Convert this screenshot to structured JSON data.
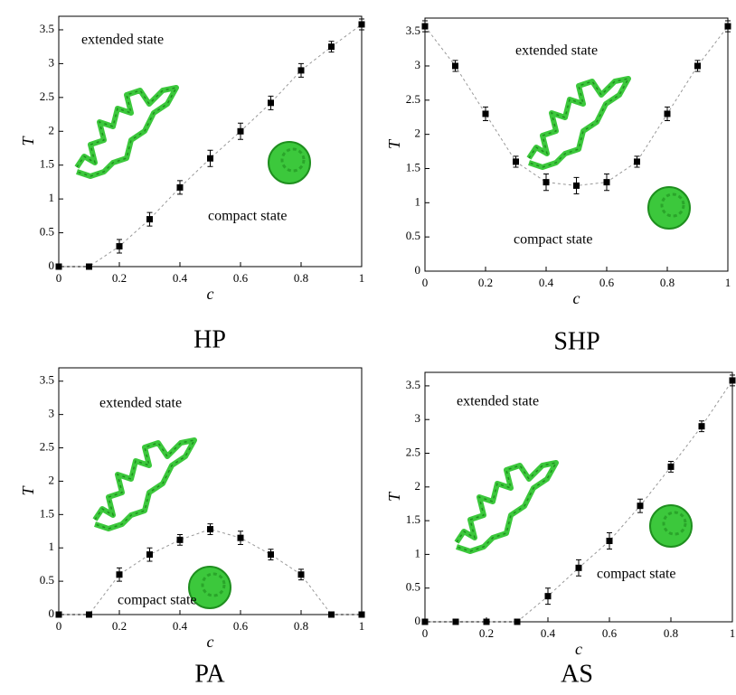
{
  "chart_data": [
    {
      "type": "scatter",
      "label": "HP",
      "xlabel": "c",
      "ylabel": "T",
      "annotations": [
        "extended state",
        "compact state"
      ],
      "color": "#000000",
      "x": [
        0,
        0.1,
        0.2,
        0.3,
        0.4,
        0.5,
        0.6,
        0.7,
        0.8,
        0.9,
        1
      ],
      "values": [
        0,
        0,
        0.3,
        0.7,
        1.17,
        1.6,
        2.0,
        2.42,
        2.9,
        3.25,
        3.58
      ],
      "errors": [
        0,
        0,
        0.1,
        0.1,
        0.1,
        0.12,
        0.12,
        0.1,
        0.1,
        0.08,
        0.08
      ],
      "xlim": [
        0,
        1
      ],
      "ylim": [
        0,
        3.7
      ],
      "xticks": [
        0,
        0.2,
        0.4,
        0.6,
        0.8,
        1
      ],
      "yticks": [
        0,
        0.5,
        1,
        1.5,
        2,
        2.5,
        3,
        3.5
      ]
    },
    {
      "type": "scatter",
      "label": "SHP",
      "xlabel": "c",
      "ylabel": "T",
      "annotations": [
        "extended state",
        "compact state"
      ],
      "color": "#000000",
      "x": [
        0,
        0.1,
        0.2,
        0.3,
        0.4,
        0.5,
        0.6,
        0.7,
        0.8,
        0.9,
        1
      ],
      "values": [
        3.58,
        3.0,
        2.3,
        1.6,
        1.3,
        1.25,
        1.3,
        1.6,
        2.3,
        3.0,
        3.58
      ],
      "errors": [
        0.08,
        0.08,
        0.1,
        0.08,
        0.12,
        0.12,
        0.12,
        0.08,
        0.1,
        0.08,
        0.08
      ],
      "xlim": [
        0,
        1
      ],
      "ylim": [
        0,
        3.7
      ],
      "xticks": [
        0,
        0.2,
        0.4,
        0.6,
        0.8,
        1
      ],
      "yticks": [
        0,
        0.5,
        1,
        1.5,
        2,
        2.5,
        3,
        3.5
      ]
    },
    {
      "type": "scatter",
      "label": "PA",
      "xlabel": "c",
      "ylabel": "T",
      "annotations": [
        "extended state",
        "compact state"
      ],
      "color": "#000000",
      "x": [
        0,
        0.1,
        0.2,
        0.3,
        0.4,
        0.5,
        0.6,
        0.7,
        0.8,
        0.9,
        1
      ],
      "values": [
        0,
        0,
        0.6,
        0.9,
        1.12,
        1.28,
        1.15,
        0.9,
        0.6,
        0,
        0
      ],
      "errors": [
        0,
        0,
        0.1,
        0.1,
        0.08,
        0.08,
        0.1,
        0.08,
        0.08,
        0,
        0
      ],
      "xlim": [
        0,
        1
      ],
      "ylim": [
        0,
        3.7
      ],
      "xticks": [
        0,
        0.2,
        0.4,
        0.6,
        0.8,
        1
      ],
      "yticks": [
        0,
        0.5,
        1,
        1.5,
        2,
        2.5,
        3,
        3.5
      ]
    },
    {
      "type": "scatter",
      "label": "AS",
      "xlabel": "c",
      "ylabel": "T",
      "annotations": [
        "extended state",
        "compact state"
      ],
      "color": "#000000",
      "x": [
        0,
        0.1,
        0.2,
        0.3,
        0.4,
        0.5,
        0.6,
        0.7,
        0.8,
        0.9,
        1
      ],
      "values": [
        0,
        0,
        0,
        0,
        0.38,
        0.8,
        1.2,
        1.72,
        2.3,
        2.9,
        3.58
      ],
      "errors": [
        0,
        0,
        0,
        0,
        0.12,
        0.12,
        0.12,
        0.1,
        0.08,
        0.08,
        0.08
      ],
      "xlim": [
        0,
        1
      ],
      "ylim": [
        0,
        3.7
      ],
      "xticks": [
        0,
        0.2,
        0.4,
        0.6,
        0.8,
        1
      ],
      "yticks": [
        0,
        0.5,
        1,
        1.5,
        2,
        2.5,
        3,
        3.5
      ]
    }
  ]
}
